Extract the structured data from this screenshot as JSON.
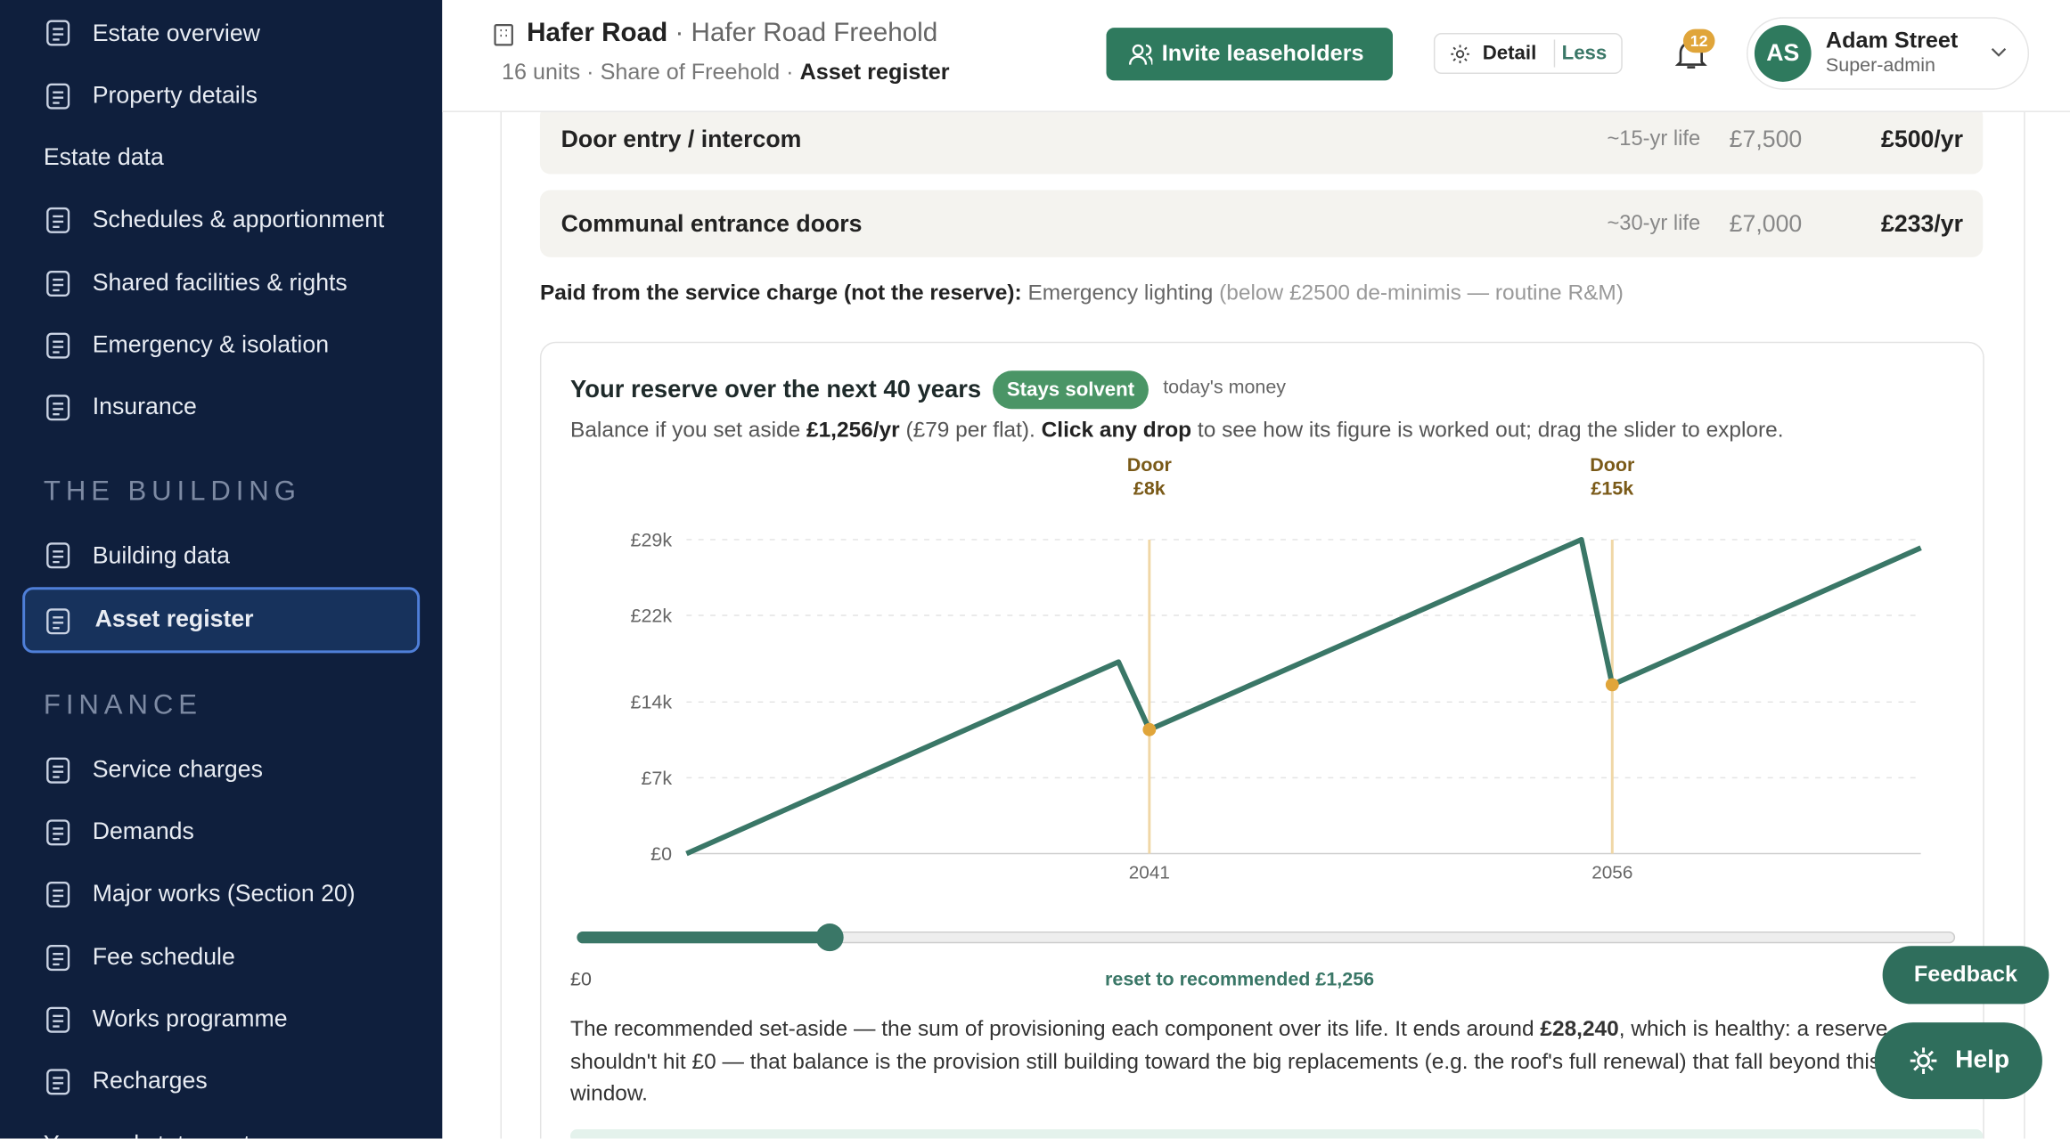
{
  "sidebar": [
    {
      "label": "Estate overview",
      "kind": "link"
    },
    {
      "label": "Property details",
      "kind": "link"
    },
    {
      "label": "Estate data",
      "kind": "plain"
    },
    {
      "label": "Schedules & apportionment",
      "kind": "link"
    },
    {
      "label": "Shared facilities & rights",
      "kind": "link"
    },
    {
      "label": "Emergency & isolation",
      "kind": "link"
    },
    {
      "label": "Insurance",
      "kind": "link"
    },
    {
      "label": "THE BUILDING",
      "kind": "section"
    },
    {
      "label": "Building data",
      "kind": "link"
    },
    {
      "label": "Asset register",
      "kind": "active"
    },
    {
      "label": "FINANCE",
      "kind": "section"
    },
    {
      "label": "Service charges",
      "kind": "link"
    },
    {
      "label": "Demands",
      "kind": "link"
    },
    {
      "label": "Major works (Section 20)",
      "kind": "link"
    },
    {
      "label": "Fee schedule",
      "kind": "link"
    },
    {
      "label": "Works programme",
      "kind": "link"
    },
    {
      "label": "Recharges",
      "kind": "link"
    },
    {
      "label": "Year-end statements",
      "kind": "plain"
    }
  ],
  "header": {
    "title": "Hafer Road",
    "subtitle": "· Hafer Road Freehold",
    "meta": "16 units · Share of Freehold ·",
    "page": "Asset register",
    "invite": "Invite leaseholders",
    "detail": "Detail",
    "less": "Less",
    "notifications": "12",
    "initials": "AS",
    "user": "Adam Street",
    "role": "Super-admin"
  },
  "assets": [
    {
      "name": "Door entry / intercom",
      "life": "~15-yr life",
      "cost": "£7,500",
      "annual": "£500/yr"
    },
    {
      "name": "Communal entrance doors",
      "life": "~30-yr life",
      "cost": "£7,000",
      "annual": "£233/yr"
    }
  ],
  "note": {
    "lead": "Paid from the service charge (not the reserve):",
    "item": "Emergency lighting",
    "detail": "(below £2500 de-minimis — routine R&M)"
  },
  "reserve": {
    "title": "Your reserve over the next 40 years",
    "badge": "Stays solvent",
    "basis": "today's money",
    "description": [
      "Balance if you set aside ",
      "£1,256/yr",
      " (£79 per flat). ",
      "Click any drop",
      " to see how its figure is worked out; drag the slider to explore."
    ],
    "slider_min": "£0",
    "reset": "reset to recommended £1,256",
    "summary": [
      "The recommended set-aside — the sum of provisioning each component over its life. It ends around ",
      "£28,240",
      ", which is healthy: a reserve shouldn't hit £0 — that balance is the provision still building toward the big replacements (e.g. the roof's full renewal) that fall beyond this window."
    ]
  },
  "chart_data": {
    "type": "line",
    "x": [
      2026,
      2040,
      2041,
      2055,
      2056,
      2066
    ],
    "series": [
      {
        "name": "Reserve balance",
        "color": "#3a7767",
        "values": [
          0,
          17700,
          11450,
          29000,
          15600,
          28240
        ]
      }
    ],
    "xlim": [
      2026,
      2066
    ],
    "xticks": [
      2041,
      2056
    ],
    "ylim": [
      0,
      29000
    ],
    "yticks": [
      {
        "value": 0,
        "label": "£0"
      },
      {
        "value": 7000,
        "label": "£7k"
      },
      {
        "value": 14000,
        "label": "£14k"
      },
      {
        "value": 22000,
        "label": "£22k"
      },
      {
        "value": 29000,
        "label": "£29k"
      }
    ],
    "grid": true,
    "marker_color": "#e0a53a",
    "annotations": [
      {
        "x": 2041,
        "text": "Door",
        "label": "£8k"
      },
      {
        "x": 2056,
        "text": "Door",
        "label": "£15k"
      }
    ]
  },
  "buttons": {
    "feedback": "Feedback",
    "help": "Help"
  }
}
